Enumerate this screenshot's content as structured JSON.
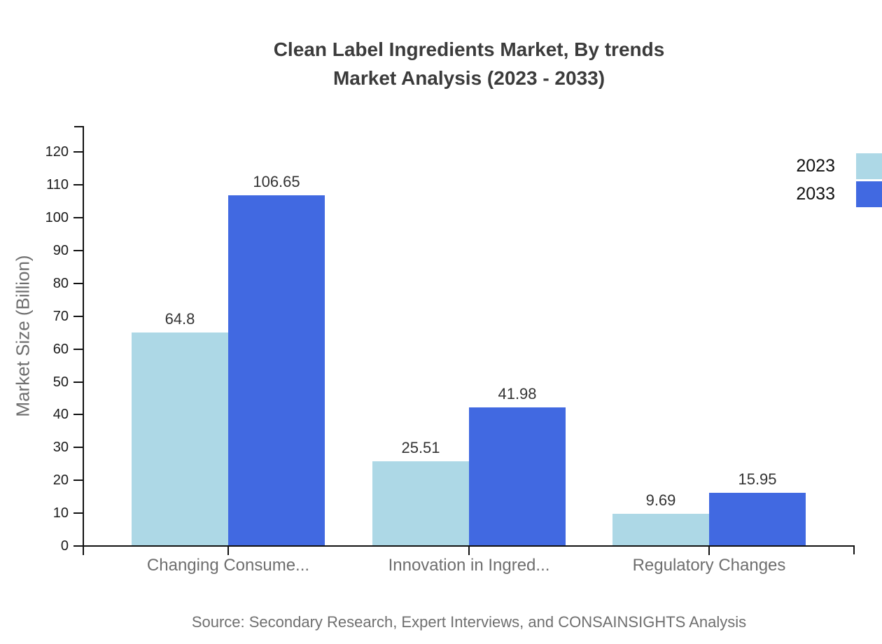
{
  "title": {
    "line1": "Clean Label Ingredients Market, By trends",
    "line2": "Market Analysis (2023 - 2033)"
  },
  "legend": [
    {
      "label": "2023",
      "color": "#ADD8E6"
    },
    {
      "label": "2033",
      "color": "#4169E1"
    }
  ],
  "chart_data": {
    "type": "bar",
    "categories": [
      "Changing Consume...",
      "Innovation in Ingred...",
      "Regulatory Changes"
    ],
    "series": [
      {
        "name": "2023",
        "color": "#ADD8E6",
        "values": [
          64.8,
          25.51,
          9.69
        ]
      },
      {
        "name": "2033",
        "color": "#4169E1",
        "values": [
          106.65,
          41.98,
          15.95
        ]
      }
    ],
    "value_labels": [
      [
        "64.8",
        "25.51",
        "9.69"
      ],
      [
        "106.65",
        "41.98",
        "15.95"
      ]
    ],
    "ylabel": "Market Size (Billion)",
    "y_ticks": [
      0,
      10,
      20,
      30,
      40,
      50,
      60,
      70,
      80,
      90,
      100,
      110,
      120
    ],
    "ylim": [
      0,
      128
    ],
    "grid": false,
    "legend_position": "top-right"
  },
  "source": "Source: Secondary Research, Expert Interviews, and CONSAINSIGHTS Analysis"
}
